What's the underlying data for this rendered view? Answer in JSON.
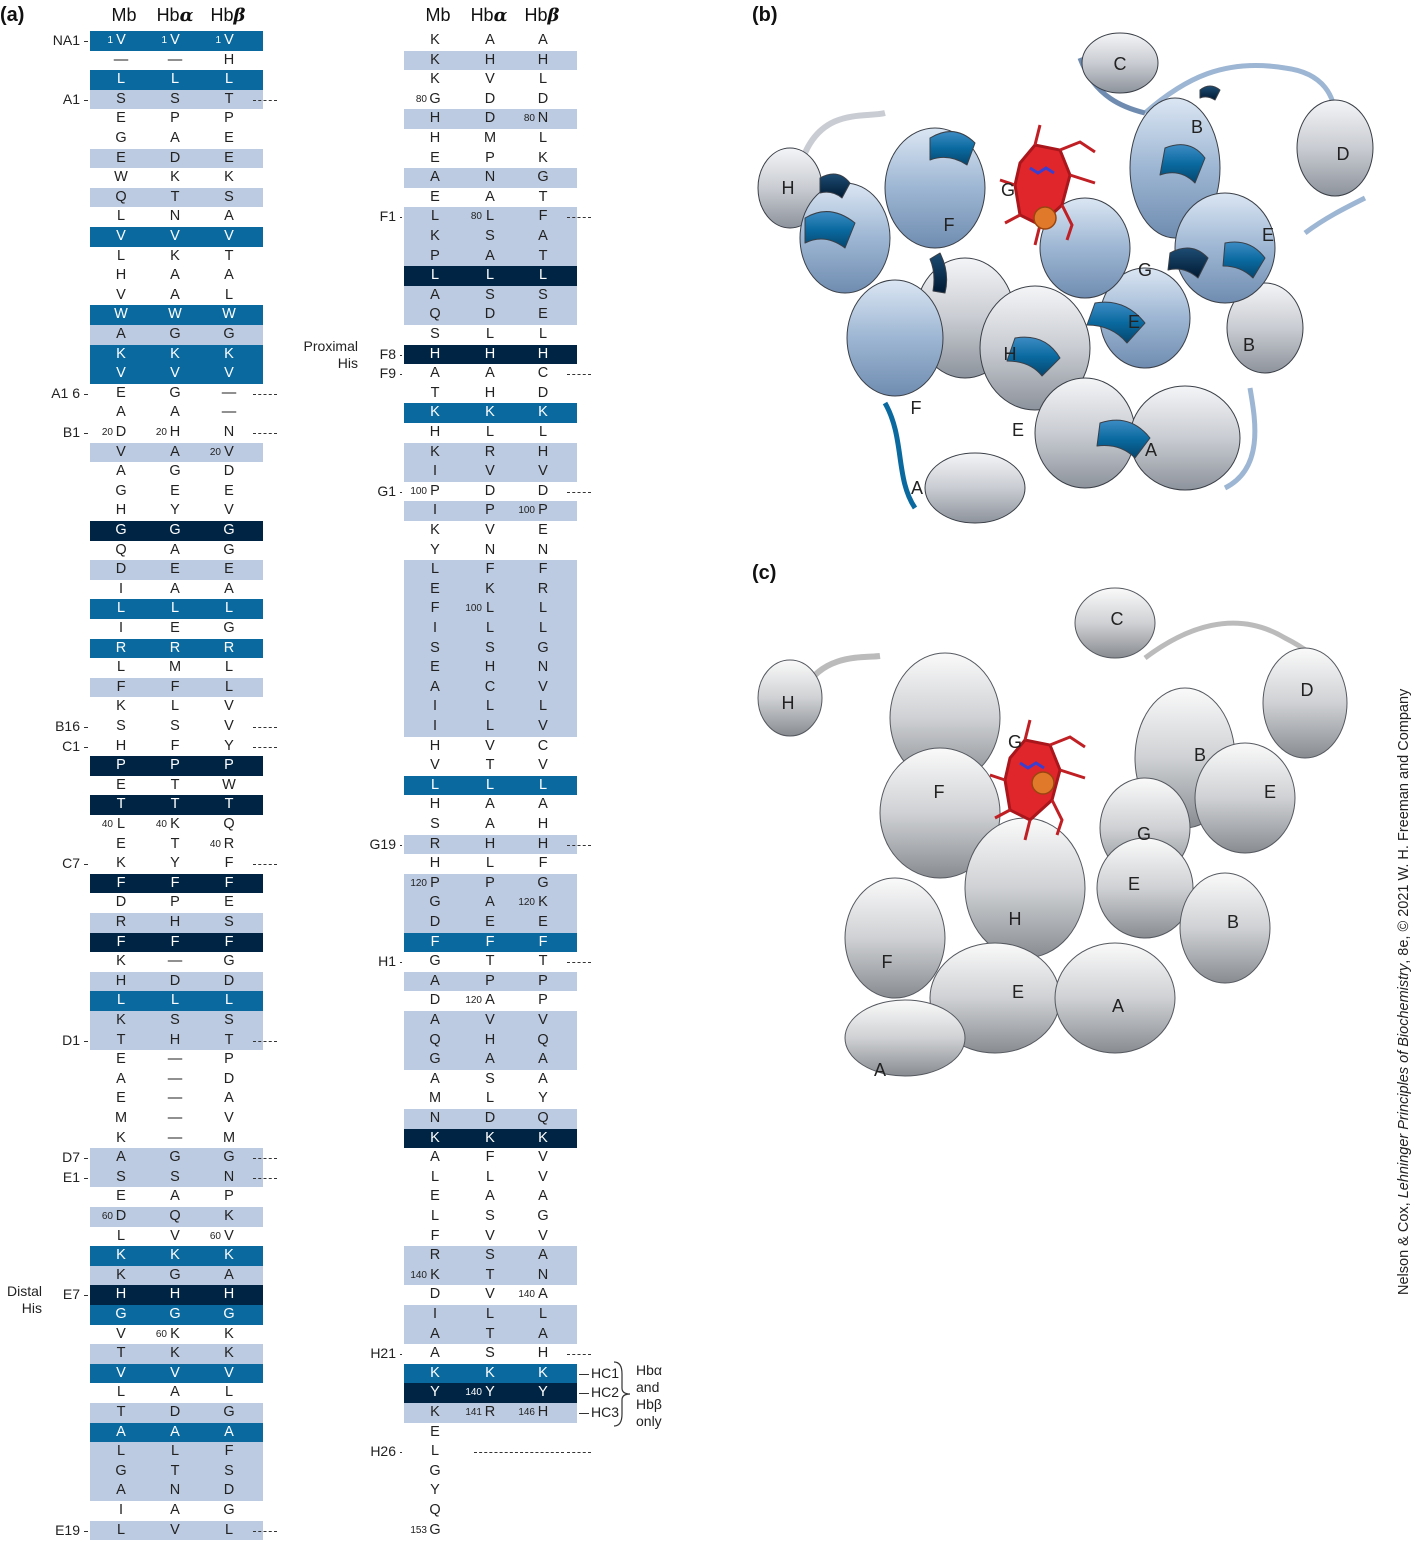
{
  "panel_a": {
    "label": "(a)",
    "col_headers": {
      "mb": "Mb",
      "hba_prefix": "Hb",
      "hba_greek": "α",
      "hbb_prefix": "Hb",
      "hbb_greek": "β"
    },
    "left_rows": [
      {
        "mb": "V",
        "a": "V",
        "b": "V",
        "band": "med",
        "num_mb": "1",
        "num_a": "1",
        "num_b": "1",
        "label": "NA1"
      },
      {
        "mb": "—",
        "a": "—",
        "b": "H"
      },
      {
        "mb": "L",
        "a": "L",
        "b": "L",
        "band": "med"
      },
      {
        "mb": "S",
        "a": "S",
        "b": "T",
        "band": "light",
        "label": "A1",
        "dash": true
      },
      {
        "mb": "E",
        "a": "P",
        "b": "P"
      },
      {
        "mb": "G",
        "a": "A",
        "b": "E"
      },
      {
        "mb": "E",
        "a": "D",
        "b": "E",
        "band": "light"
      },
      {
        "mb": "W",
        "a": "K",
        "b": "K"
      },
      {
        "mb": "Q",
        "a": "T",
        "b": "S",
        "band": "light"
      },
      {
        "mb": "L",
        "a": "N",
        "b": "A"
      },
      {
        "mb": "V",
        "a": "V",
        "b": "V",
        "band": "med"
      },
      {
        "mb": "L",
        "a": "K",
        "b": "T"
      },
      {
        "mb": "H",
        "a": "A",
        "b": "A"
      },
      {
        "mb": "V",
        "a": "A",
        "b": "L"
      },
      {
        "mb": "W",
        "a": "W",
        "b": "W",
        "band": "med"
      },
      {
        "mb": "A",
        "a": "G",
        "b": "G",
        "band": "light"
      },
      {
        "mb": "K",
        "a": "K",
        "b": "K",
        "band": "med"
      },
      {
        "mb": "V",
        "a": "V",
        "b": "V",
        "band": "med"
      },
      {
        "mb": "E",
        "a": "G",
        "b": "—",
        "label": "A1 6",
        "dash": true
      },
      {
        "mb": "A",
        "a": "A",
        "b": "—"
      },
      {
        "mb": "D",
        "a": "H",
        "b": "N",
        "label": "B1",
        "dash": true,
        "num_mb": "20",
        "num_a": "20"
      },
      {
        "mb": "V",
        "a": "A",
        "b": "V",
        "band": "light",
        "num_b": "20"
      },
      {
        "mb": "A",
        "a": "G",
        "b": "D"
      },
      {
        "mb": "G",
        "a": "E",
        "b": "E"
      },
      {
        "mb": "H",
        "a": "Y",
        "b": "V"
      },
      {
        "mb": "G",
        "a": "G",
        "b": "G",
        "band": "dark"
      },
      {
        "mb": "Q",
        "a": "A",
        "b": "G"
      },
      {
        "mb": "D",
        "a": "E",
        "b": "E",
        "band": "light"
      },
      {
        "mb": "I",
        "a": "A",
        "b": "A"
      },
      {
        "mb": "L",
        "a": "L",
        "b": "L",
        "band": "med"
      },
      {
        "mb": "I",
        "a": "E",
        "b": "G"
      },
      {
        "mb": "R",
        "a": "R",
        "b": "R",
        "band": "med"
      },
      {
        "mb": "L",
        "a": "M",
        "b": "L"
      },
      {
        "mb": "F",
        "a": "F",
        "b": "L",
        "band": "light"
      },
      {
        "mb": "K",
        "a": "L",
        "b": "V"
      },
      {
        "mb": "S",
        "a": "S",
        "b": "V",
        "label": "B16",
        "dash": true
      },
      {
        "mb": "H",
        "a": "F",
        "b": "Y",
        "label": "C1",
        "dash": true
      },
      {
        "mb": "P",
        "a": "P",
        "b": "P",
        "band": "dark"
      },
      {
        "mb": "E",
        "a": "T",
        "b": "W"
      },
      {
        "mb": "T",
        "a": "T",
        "b": "T",
        "band": "dark"
      },
      {
        "mb": "L",
        "a": "K",
        "b": "Q",
        "num_mb": "40",
        "num_a": "40"
      },
      {
        "mb": "E",
        "a": "T",
        "b": "R",
        "num_b": "40"
      },
      {
        "mb": "K",
        "a": "Y",
        "b": "F",
        "label": "C7",
        "dash": true
      },
      {
        "mb": "F",
        "a": "F",
        "b": "F",
        "band": "dark"
      },
      {
        "mb": "D",
        "a": "P",
        "b": "E"
      },
      {
        "mb": "R",
        "a": "H",
        "b": "S",
        "band": "light"
      },
      {
        "mb": "F",
        "a": "F",
        "b": "F",
        "band": "dark"
      },
      {
        "mb": "K",
        "a": "—",
        "b": "G"
      },
      {
        "mb": "H",
        "a": "D",
        "b": "D",
        "band": "light"
      },
      {
        "mb": "L",
        "a": "L",
        "b": "L",
        "band": "med"
      },
      {
        "mb": "K",
        "a": "S",
        "b": "S",
        "band": "light"
      },
      {
        "mb": "T",
        "a": "H",
        "b": "T",
        "band": "light",
        "label": "D1",
        "dash": true
      },
      {
        "mb": "E",
        "a": "—",
        "b": "P"
      },
      {
        "mb": "A",
        "a": "—",
        "b": "D"
      },
      {
        "mb": "E",
        "a": "—",
        "b": "A"
      },
      {
        "mb": "M",
        "a": "—",
        "b": "V"
      },
      {
        "mb": "K",
        "a": "—",
        "b": "M"
      },
      {
        "mb": "A",
        "a": "G",
        "b": "G",
        "band": "light",
        "label": "D7",
        "dash": true
      },
      {
        "mb": "S",
        "a": "S",
        "b": "N",
        "band": "light",
        "label": "E1",
        "dash": true
      },
      {
        "mb": "E",
        "a": "A",
        "b": "P"
      },
      {
        "mb": "D",
        "a": "Q",
        "b": "K",
        "band": "light",
        "num_mb": "60"
      },
      {
        "mb": "L",
        "a": "V",
        "b": "V",
        "num_b": "60"
      },
      {
        "mb": "K",
        "a": "K",
        "b": "K",
        "band": "med"
      },
      {
        "mb": "K",
        "a": "G",
        "b": "A",
        "band": "light"
      },
      {
        "mb": "H",
        "a": "H",
        "b": "H",
        "band": "dark",
        "label": "E7"
      },
      {
        "mb": "G",
        "a": "G",
        "b": "G",
        "band": "med"
      },
      {
        "mb": "V",
        "a": "K",
        "b": "K",
        "num_a": "60"
      },
      {
        "mb": "T",
        "a": "K",
        "b": "K",
        "band": "light"
      },
      {
        "mb": "V",
        "a": "V",
        "b": "V",
        "band": "med"
      },
      {
        "mb": "L",
        "a": "A",
        "b": "L"
      },
      {
        "mb": "T",
        "a": "D",
        "b": "G",
        "band": "light"
      },
      {
        "mb": "A",
        "a": "A",
        "b": "A",
        "band": "med"
      },
      {
        "mb": "L",
        "a": "L",
        "b": "F",
        "band": "light"
      },
      {
        "mb": "G",
        "a": "T",
        "b": "S",
        "band": "light"
      },
      {
        "mb": "A",
        "a": "N",
        "b": "D",
        "band": "light"
      },
      {
        "mb": "I",
        "a": "A",
        "b": "G"
      },
      {
        "mb": "L",
        "a": "V",
        "b": "L",
        "band": "light",
        "label": "E19",
        "dash": true
      }
    ],
    "right_rows": [
      {
        "mb": "K",
        "a": "A",
        "b": "A"
      },
      {
        "mb": "K",
        "a": "H",
        "b": "H",
        "band": "light"
      },
      {
        "mb": "K",
        "a": "V",
        "b": "L"
      },
      {
        "mb": "G",
        "a": "D",
        "b": "D",
        "num_mb": "80"
      },
      {
        "mb": "H",
        "a": "D",
        "b": "N",
        "band": "light",
        "num_b": "80"
      },
      {
        "mb": "H",
        "a": "M",
        "b": "L"
      },
      {
        "mb": "E",
        "a": "P",
        "b": "K"
      },
      {
        "mb": "A",
        "a": "N",
        "b": "G",
        "band": "light"
      },
      {
        "mb": "E",
        "a": "A",
        "b": "T"
      },
      {
        "mb": "L",
        "a": "L",
        "b": "F",
        "band": "light",
        "label": "F1",
        "dash": true,
        "num_a": "80"
      },
      {
        "mb": "K",
        "a": "S",
        "b": "A",
        "band": "light"
      },
      {
        "mb": "P",
        "a": "A",
        "b": "T",
        "band": "light"
      },
      {
        "mb": "L",
        "a": "L",
        "b": "L",
        "band": "dark"
      },
      {
        "mb": "A",
        "a": "S",
        "b": "S",
        "band": "light"
      },
      {
        "mb": "Q",
        "a": "D",
        "b": "E",
        "band": "light"
      },
      {
        "mb": "S",
        "a": "L",
        "b": "L"
      },
      {
        "mb": "H",
        "a": "H",
        "b": "H",
        "band": "dark",
        "label": "F8"
      },
      {
        "mb": "A",
        "a": "A",
        "b": "C",
        "label": "F9",
        "dash": true
      },
      {
        "mb": "T",
        "a": "H",
        "b": "D"
      },
      {
        "mb": "K",
        "a": "K",
        "b": "K",
        "band": "med"
      },
      {
        "mb": "H",
        "a": "L",
        "b": "L"
      },
      {
        "mb": "K",
        "a": "R",
        "b": "H",
        "band": "light"
      },
      {
        "mb": "I",
        "a": "V",
        "b": "V",
        "band": "light"
      },
      {
        "mb": "P",
        "a": "D",
        "b": "D",
        "label": "G1",
        "dash": true,
        "num_mb": "100"
      },
      {
        "mb": "I",
        "a": "P",
        "b": "P",
        "band": "light",
        "num_b": "100"
      },
      {
        "mb": "K",
        "a": "V",
        "b": "E"
      },
      {
        "mb": "Y",
        "a": "N",
        "b": "N"
      },
      {
        "mb": "L",
        "a": "F",
        "b": "F",
        "band": "light"
      },
      {
        "mb": "E",
        "a": "K",
        "b": "R",
        "band": "light"
      },
      {
        "mb": "F",
        "a": "L",
        "b": "L",
        "band": "light",
        "num_a": "100"
      },
      {
        "mb": "I",
        "a": "L",
        "b": "L",
        "band": "light"
      },
      {
        "mb": "S",
        "a": "S",
        "b": "G",
        "band": "light"
      },
      {
        "mb": "E",
        "a": "H",
        "b": "N",
        "band": "light"
      },
      {
        "mb": "A",
        "a": "C",
        "b": "V",
        "band": "light"
      },
      {
        "mb": "I",
        "a": "L",
        "b": "L",
        "band": "light"
      },
      {
        "mb": "I",
        "a": "L",
        "b": "V",
        "band": "light"
      },
      {
        "mb": "H",
        "a": "V",
        "b": "C"
      },
      {
        "mb": "V",
        "a": "T",
        "b": "V"
      },
      {
        "mb": "L",
        "a": "L",
        "b": "L",
        "band": "med"
      },
      {
        "mb": "H",
        "a": "A",
        "b": "A"
      },
      {
        "mb": "S",
        "a": "A",
        "b": "H"
      },
      {
        "mb": "R",
        "a": "H",
        "b": "H",
        "band": "light",
        "label": "G19",
        "dash": true
      },
      {
        "mb": "H",
        "a": "L",
        "b": "F"
      },
      {
        "mb": "P",
        "a": "P",
        "b": "G",
        "band": "light",
        "num_mb": "120"
      },
      {
        "mb": "G",
        "a": "A",
        "b": "K",
        "band": "light",
        "num_b": "120"
      },
      {
        "mb": "D",
        "a": "E",
        "b": "E",
        "band": "light"
      },
      {
        "mb": "F",
        "a": "F",
        "b": "F",
        "band": "med"
      },
      {
        "mb": "G",
        "a": "T",
        "b": "T",
        "label": "H1",
        "dash": true
      },
      {
        "mb": "A",
        "a": "P",
        "b": "P",
        "band": "light"
      },
      {
        "mb": "D",
        "a": "A",
        "b": "P",
        "num_a": "120"
      },
      {
        "mb": "A",
        "a": "V",
        "b": "V",
        "band": "light"
      },
      {
        "mb": "Q",
        "a": "H",
        "b": "Q",
        "band": "light"
      },
      {
        "mb": "G",
        "a": "A",
        "b": "A",
        "band": "light"
      },
      {
        "mb": "A",
        "a": "S",
        "b": "A"
      },
      {
        "mb": "M",
        "a": "L",
        "b": "Y"
      },
      {
        "mb": "N",
        "a": "D",
        "b": "Q",
        "band": "light"
      },
      {
        "mb": "K",
        "a": "K",
        "b": "K",
        "band": "dark"
      },
      {
        "mb": "A",
        "a": "F",
        "b": "V"
      },
      {
        "mb": "L",
        "a": "L",
        "b": "V"
      },
      {
        "mb": "E",
        "a": "A",
        "b": "A"
      },
      {
        "mb": "L",
        "a": "S",
        "b": "G"
      },
      {
        "mb": "F",
        "a": "V",
        "b": "V"
      },
      {
        "mb": "R",
        "a": "S",
        "b": "A",
        "band": "light"
      },
      {
        "mb": "K",
        "a": "T",
        "b": "N",
        "band": "light",
        "num_mb": "140"
      },
      {
        "mb": "D",
        "a": "V",
        "b": "A",
        "num_b": "140"
      },
      {
        "mb": "I",
        "a": "L",
        "b": "L",
        "band": "light"
      },
      {
        "mb": "A",
        "a": "T",
        "b": "A",
        "band": "light"
      },
      {
        "mb": "A",
        "a": "S",
        "b": "H",
        "label": "H21",
        "dash": true
      },
      {
        "mb": "K",
        "a": "K",
        "b": "K",
        "band": "med",
        "hc": "HC1"
      },
      {
        "mb": "Y",
        "a": "Y",
        "b": "Y",
        "band": "dark",
        "hc": "HC2",
        "num_a": "140"
      },
      {
        "mb": "K",
        "a": "R",
        "b": "H",
        "band": "light",
        "hc": "HC3",
        "num_a": "141",
        "num_b": "146"
      },
      {
        "mb": "E",
        "a": "",
        "b": ""
      },
      {
        "mb": "L",
        "a": "",
        "b": "",
        "label": "H26",
        "dash": true,
        "long_dash": true
      },
      {
        "mb": "G",
        "a": "",
        "b": ""
      },
      {
        "mb": "Y",
        "a": "",
        "b": ""
      },
      {
        "mb": "Q",
        "a": "",
        "b": ""
      },
      {
        "mb": "G",
        "a": "",
        "b": "",
        "num_mb": "153"
      }
    ],
    "side_labels": {
      "proximal": [
        "Proximal",
        "His"
      ],
      "distal": [
        "Distal",
        "His"
      ],
      "hc_note": [
        "Hbα",
        "and",
        "Hbβ",
        "only"
      ]
    }
  },
  "panel_b": {
    "label": "(b)",
    "helix_labels": [
      "C",
      "B",
      "D",
      "H",
      "G",
      "F",
      "G",
      "E",
      "E",
      "H",
      "B",
      "F",
      "E",
      "A",
      "A"
    ]
  },
  "panel_c": {
    "label": "(c)",
    "helix_labels": [
      "C",
      "D",
      "H",
      "G",
      "F",
      "B",
      "E",
      "G",
      "E",
      "H",
      "B",
      "F",
      "E",
      "A",
      "A"
    ]
  },
  "credit": {
    "prefix": "Nelson & Cox, ",
    "title": "Lehninger Principles of Biochemistry",
    "suffix": ", 8e, © 2021 W. H. Freeman and Company"
  },
  "colors": {
    "light": "#bccbe1",
    "medium": "#0a6aa0",
    "dark": "#002444",
    "heme": "#e0262b",
    "iron": "#e07a2a"
  }
}
